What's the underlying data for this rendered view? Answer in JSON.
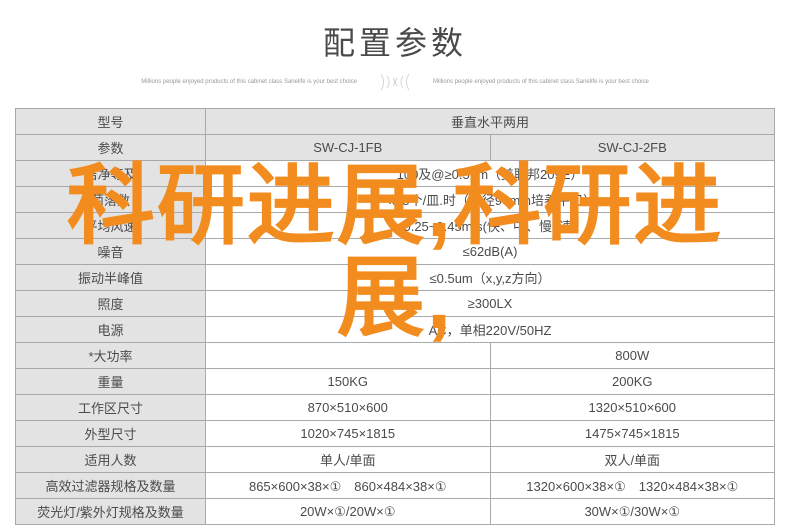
{
  "title": "配置参数",
  "subtitle_left": "Millions people enjoyed products of this cabinet class\nSanelife is your best choice",
  "subtitle_right": "Millions people enjoyed products of this cabinet class\nSanelife is your best choice",
  "watermark_line1": "科研进展,科研进",
  "watermark_line2": "展,",
  "colors": {
    "title_text": "#4a4a4a",
    "cell_text": "#4b4b4b",
    "header_bg": "#e3e3e3",
    "border": "#a9a9a9",
    "watermark": "#f28c1e",
    "background": "#ffffff"
  },
  "table": {
    "header_model_label": "型号",
    "header_param_label": "参数",
    "header_span_label": "垂直水平两用",
    "models": [
      "SW-CJ-1FB",
      "SW-CJ-2FB"
    ],
    "rows": [
      {
        "param": "洁净等及",
        "span": "100及@≥0.5μm（美联邦209E）"
      },
      {
        "param": "菌落数",
        "span": "<0.5个/皿.时（直径90mm培养平皿）"
      },
      {
        "param": "平均风速",
        "span": "0.25~0.45m/s(快、中、慢3速)"
      },
      {
        "param": "噪音",
        "span": "≤62dB(A)"
      },
      {
        "param": "振动半峰值",
        "span": "≤0.5um（x,y,z方向）"
      },
      {
        "param": "照度",
        "span": "≥300LX"
      },
      {
        "param": "电源",
        "span": "AC，单相220V/50HZ"
      },
      {
        "param": "*大功率",
        "cells": [
          "",
          "800W"
        ]
      },
      {
        "param": "重量",
        "cells": [
          "150KG",
          "200KG"
        ]
      },
      {
        "param": "工作区尺寸",
        "cells": [
          "870×510×600",
          "1320×510×600"
        ]
      },
      {
        "param": "外型尺寸",
        "cells": [
          "1020×745×1815",
          "1475×745×1815"
        ]
      },
      {
        "param": "适用人数",
        "cells": [
          "单人/单面",
          "双人/单面"
        ]
      },
      {
        "param": "高效过滤器规格及数量",
        "cells": [
          "865×600×38×①　860×484×38×①",
          "1320×600×38×①　1320×484×38×①"
        ]
      },
      {
        "param": "荧光灯/紫外灯规格及数量",
        "cells": [
          "20W×①/20W×①",
          "30W×①/30W×①"
        ]
      }
    ]
  }
}
